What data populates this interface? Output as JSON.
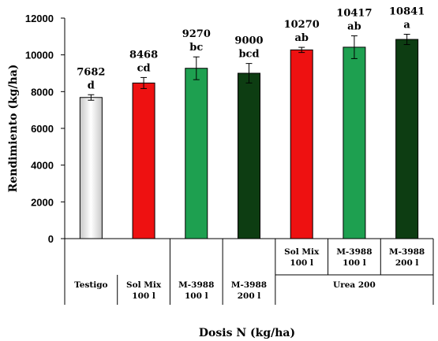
{
  "chart_data": {
    "type": "bar",
    "xlabel": "Dosis N (kg/ha)",
    "ylabel": "Rendimiento (kg/ha)",
    "ylim": [
      0,
      12000
    ],
    "yticks": [
      "0",
      "2000",
      "4000",
      "6000",
      "8000",
      "10000",
      "12000"
    ],
    "grid": false,
    "bars": [
      {
        "value": 7682,
        "value_label": "7682",
        "letter": "d",
        "error": 150,
        "color": "#ffffff"
      },
      {
        "value": 8468,
        "value_label": "8468",
        "letter": "cd",
        "error": 300,
        "color": "#ee1111"
      },
      {
        "value": 9270,
        "value_label": "9270",
        "letter": "bc",
        "error": 620,
        "color": "#1ea050"
      },
      {
        "value": 9000,
        "value_label": "9000",
        "letter": "bcd",
        "error": 530,
        "color": "#0d3d12"
      },
      {
        "value": 10270,
        "value_label": "10270",
        "letter": "ab",
        "error": 140,
        "color": "#ee1111"
      },
      {
        "value": 10417,
        "value_label": "10417",
        "letter": "ab",
        "error": 620,
        "color": "#1ea050"
      },
      {
        "value": 10841,
        "value_label": "10841",
        "letter": "a",
        "error": 280,
        "color": "#0d3d12"
      }
    ],
    "categories_row1": [
      {
        "line1": "Sol Mix",
        "line2": "100 l"
      },
      {
        "line1": "M-3988",
        "line2": "100 l"
      },
      {
        "line1": "M-3988",
        "line2": "200 l"
      }
    ],
    "categories_row2": [
      {
        "line1": "Testigo",
        "line2": ""
      },
      {
        "line1": "Sol Mix",
        "line2": "100 l"
      },
      {
        "line1": "M-3988",
        "line2": "100 l"
      },
      {
        "line1": "M-3988",
        "line2": "200 l"
      },
      {
        "line1": "Urea 200",
        "line2": ""
      }
    ]
  }
}
